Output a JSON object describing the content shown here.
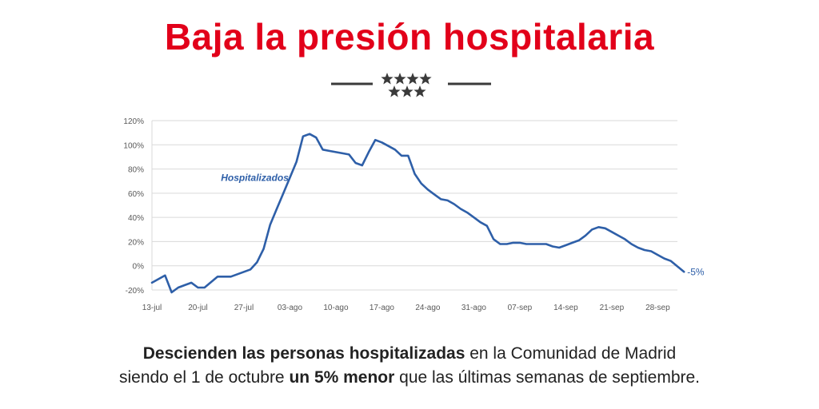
{
  "headline": "Baja la presión hospitalaria",
  "colors": {
    "headline": "#e2001a",
    "line": "#2e5fa8",
    "grid": "#d9d9d9",
    "emblem": "#3a3a3a"
  },
  "emblem": {
    "icon": "seven-stars-emblem-icon"
  },
  "chart_data": {
    "type": "line",
    "title": "",
    "xlabel": "",
    "ylabel": "",
    "ylim": [
      -20,
      120
    ],
    "yticks": [
      "-20%",
      "0%",
      "20%",
      "40%",
      "60%",
      "80%",
      "100%",
      "120%"
    ],
    "ytick_values": [
      -20,
      0,
      20,
      40,
      60,
      80,
      100,
      120
    ],
    "xticks": [
      "13-jul",
      "20-jul",
      "27-jul",
      "03-ago",
      "10-ago",
      "17-ago",
      "24-ago",
      "31-ago",
      "07-sep",
      "14-sep",
      "21-sep",
      "28-sep"
    ],
    "x_range_days": [
      0,
      80
    ],
    "grid": "horizontal",
    "series": [
      {
        "name": "Hospitalizados",
        "color": "#2e5fa8",
        "x": [
          0,
          2,
          3,
          4,
          5,
          6,
          7,
          8,
          10,
          12,
          13,
          14,
          15,
          16,
          17,
          18,
          19,
          20,
          21,
          22,
          23,
          24,
          25,
          26,
          27,
          28,
          29,
          30,
          31,
          32,
          33,
          34,
          35,
          36,
          37,
          38,
          39,
          40,
          41,
          42,
          43,
          44,
          45,
          46,
          47,
          48,
          49,
          50,
          51,
          52,
          53,
          54,
          55,
          56,
          57,
          58,
          59,
          60,
          61,
          62,
          63,
          64,
          65,
          66,
          67,
          68,
          69,
          70,
          71,
          72,
          73,
          74,
          75,
          76,
          77,
          78,
          79
        ],
        "y": [
          -14,
          -8,
          -22,
          -18,
          -16,
          -14,
          -18,
          -18,
          -9,
          -9,
          -7,
          -5,
          -3,
          3,
          14,
          34,
          47,
          60,
          73,
          86,
          107,
          109,
          106,
          96,
          95,
          94,
          93,
          92,
          85,
          83,
          94,
          104,
          102,
          99,
          96,
          91,
          91,
          76,
          68,
          63,
          59,
          55,
          54,
          51,
          47,
          44,
          40,
          36,
          33,
          22,
          18,
          18,
          19,
          19,
          18,
          18,
          18,
          18,
          16,
          15,
          17,
          19,
          21,
          25,
          30,
          32,
          31,
          28,
          25,
          22,
          18,
          15,
          13,
          12,
          9,
          6,
          4
        ],
        "end_label": "-5%"
      }
    ],
    "series_final": {
      "x": 81,
      "y": -5
    },
    "series_label": "Hospitalizados"
  },
  "caption": {
    "line1_bold": "Descienden las personas hospitalizadas",
    "line1_rest": " en la Comunidad de Madrid",
    "line2_start": "siendo el 1 de octubre ",
    "line2_bold": "un 5% menor",
    "line2_end": " que las últimas semanas de septiembre."
  }
}
